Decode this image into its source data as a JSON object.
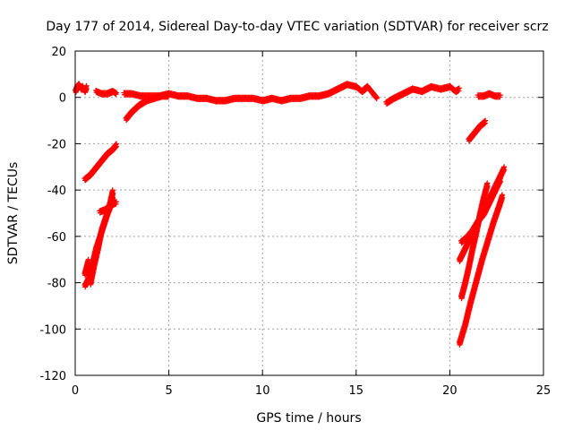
{
  "chart_data": {
    "type": "scatter",
    "title": "Day 177 of 2014, Sidereal Day-to-day VTEC variation (SDTVAR) for receiver scrz",
    "xlabel": "GPS time / hours",
    "ylabel": "SDTVAR / TECUs",
    "xlim": [
      0,
      25
    ],
    "ylim": [
      -120,
      20
    ],
    "xticks": [
      0,
      5,
      10,
      15,
      20,
      25
    ],
    "yticks": [
      -120,
      -100,
      -80,
      -60,
      -40,
      -20,
      0,
      20
    ],
    "grid": true,
    "legend": "none",
    "marker": "plus",
    "color": "#ff0000",
    "series": [
      {
        "x": [
          0.0,
          0.1,
          0.2,
          0.3,
          0.4,
          0.5,
          0.6
        ],
        "y": [
          3,
          5,
          6,
          4,
          5,
          3,
          5
        ]
      },
      {
        "x": [
          1.1,
          1.4,
          1.7,
          2.0,
          2.2
        ],
        "y": [
          3,
          2,
          2,
          3,
          2
        ]
      },
      {
        "x": [
          2.6,
          3.0,
          3.5,
          4.0,
          4.5,
          5.0,
          5.5,
          6.0,
          6.5,
          7.0,
          7.5,
          8.0,
          8.5,
          9.0,
          9.5,
          10.0,
          10.5,
          11.0,
          11.5,
          12.0,
          12.5,
          13.0,
          13.5,
          14.0,
          14.5,
          15.0,
          15.3,
          15.6,
          15.9,
          16.1
        ],
        "y": [
          2,
          2,
          1,
          1,
          1,
          2,
          1,
          1,
          0,
          0,
          -1,
          -1,
          0,
          0,
          0,
          -1,
          0,
          -1,
          0,
          0,
          1,
          1,
          2,
          4,
          6,
          5,
          3,
          5,
          2,
          0
        ]
      },
      {
        "x": [
          16.6,
          17.0,
          17.5,
          18.0,
          18.5,
          19.0,
          19.5,
          20.0,
          20.3,
          20.5
        ],
        "y": [
          -2,
          0,
          2,
          4,
          3,
          5,
          4,
          5,
          3,
          4
        ]
      },
      {
        "x": [
          21.5,
          21.8,
          22.1,
          22.4,
          22.7
        ],
        "y": [
          1,
          1,
          2,
          1,
          1
        ]
      },
      {
        "x": [
          2.7,
          3.0,
          3.4,
          3.8,
          4.2,
          4.6,
          5.0
        ],
        "y": [
          -9,
          -6,
          -3,
          -1,
          0,
          1,
          1
        ]
      },
      {
        "x": [
          0.5,
          0.8,
          1.1,
          1.4,
          1.7,
          2.0,
          2.2
        ],
        "y": [
          -35,
          -33,
          -30,
          -27,
          -24,
          -22,
          -20
        ]
      },
      {
        "x": [
          0.5,
          0.7,
          0.9,
          1.1,
          1.3,
          1.5,
          1.7,
          1.9,
          2.0
        ],
        "y": [
          -81,
          -78,
          -72,
          -65,
          -60,
          -55,
          -50,
          -46,
          -42
        ]
      },
      {
        "x": [
          0.8,
          1.0,
          1.2,
          1.4,
          1.6,
          1.8,
          2.0
        ],
        "y": [
          -80,
          -72,
          -65,
          -57,
          -52,
          -47,
          -40
        ]
      },
      {
        "x": [
          0.5,
          0.6,
          0.7
        ],
        "y": [
          -76,
          -73,
          -70
        ]
      },
      {
        "x": [
          1.3,
          1.6,
          1.9,
          2.2
        ],
        "y": [
          -49,
          -48,
          -46,
          -45
        ]
      },
      {
        "x": [
          21.0,
          21.3,
          21.6,
          21.9
        ],
        "y": [
          -18,
          -15,
          -12,
          -10
        ]
      },
      {
        "x": [
          20.6,
          20.9,
          21.2,
          21.5,
          21.8,
          22.1,
          22.4,
          22.7
        ],
        "y": [
          -62,
          -60,
          -57,
          -53,
          -50,
          -45,
          -40,
          -35
        ]
      },
      {
        "x": [
          20.6,
          20.8,
          21.0,
          21.2,
          21.4,
          21.6,
          21.8,
          22.0
        ],
        "y": [
          -86,
          -80,
          -73,
          -65,
          -58,
          -50,
          -43,
          -37
        ]
      },
      {
        "x": [
          20.5,
          20.8,
          21.1,
          21.4,
          21.7,
          22.0,
          22.3,
          22.6,
          22.8
        ],
        "y": [
          -106,
          -98,
          -88,
          -79,
          -70,
          -62,
          -54,
          -47,
          -42
        ]
      },
      {
        "x": [
          20.5,
          20.8,
          21.1,
          21.4,
          21.7,
          22.0,
          22.3,
          22.6,
          22.9
        ],
        "y": [
          -70,
          -65,
          -60,
          -55,
          -50,
          -45,
          -40,
          -35,
          -30
        ]
      }
    ]
  }
}
